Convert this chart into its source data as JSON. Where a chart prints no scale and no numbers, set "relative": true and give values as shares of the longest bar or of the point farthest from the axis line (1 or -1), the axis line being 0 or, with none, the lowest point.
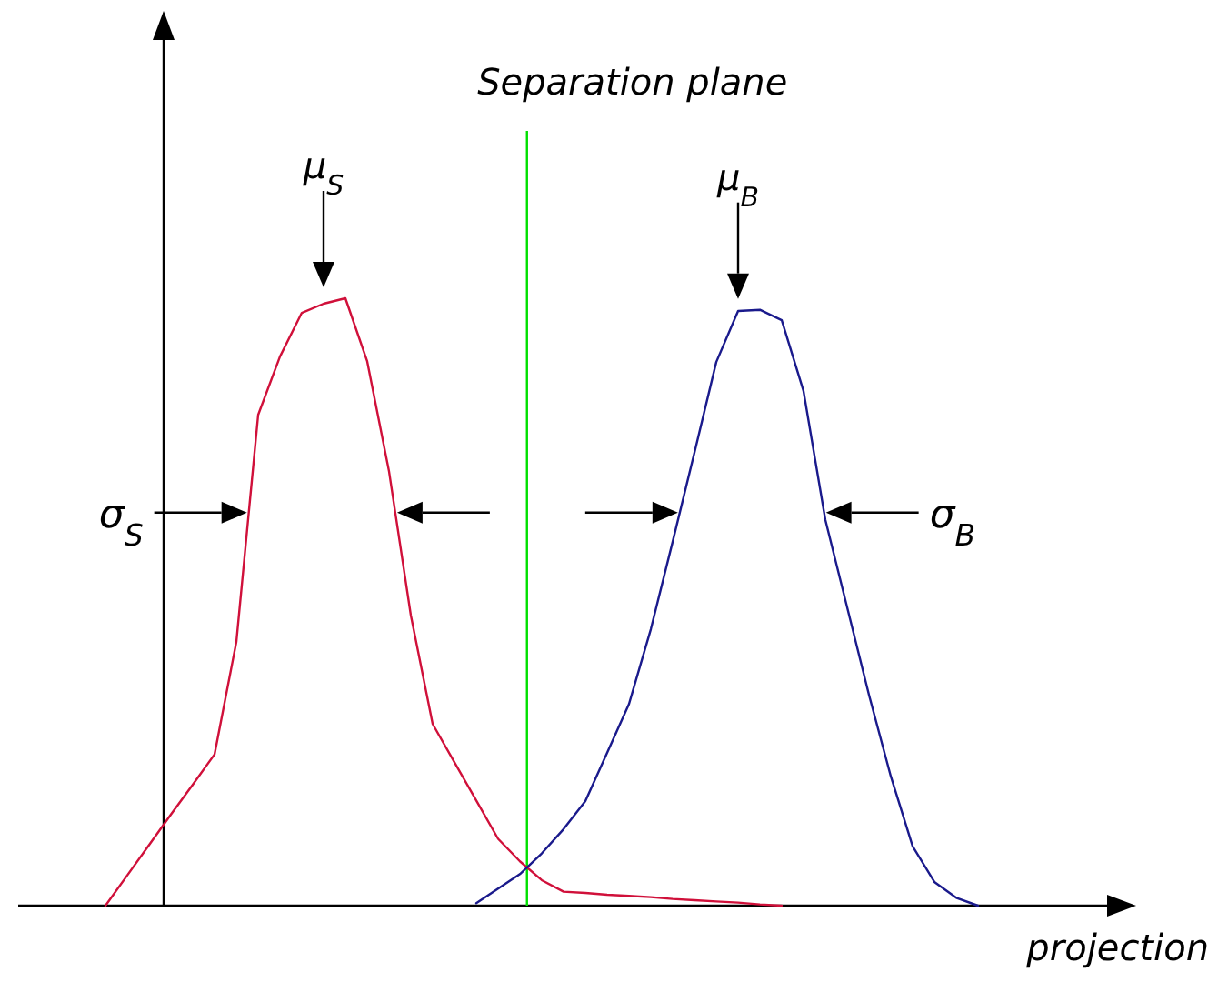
{
  "chart_data": {
    "type": "line",
    "relative": true,
    "xlabel": "projection",
    "categories": [
      null,
      null,
      null,
      null,
      null,
      null,
      null,
      null,
      null,
      null,
      null,
      null,
      null,
      null,
      null,
      null,
      null,
      null,
      null,
      null,
      null,
      null,
      null,
      null,
      null,
      null,
      null,
      null,
      null,
      null,
      null,
      null,
      null,
      null,
      null,
      null,
      null,
      null,
      null,
      null,
      null
    ],
    "series": [
      {
        "color": "#d0103a",
        "values": [
          0,
          0.05,
          0.1,
          0.15,
          0.199,
          0.249,
          0.434,
          0.808,
          0.904,
          0.976,
          0.991,
          1.0,
          0.896,
          0.715,
          0.478,
          0.299,
          0.236,
          0.173,
          0.11,
          0.073,
          0.042,
          0.023,
          0.021,
          0.018,
          0.016,
          0.014,
          0.011,
          0.009,
          0.007,
          0.005,
          0.002,
          0,
          null,
          null,
          null,
          null,
          null,
          null,
          null,
          null,
          null
        ]
      },
      {
        "color": "#1a1a8c",
        "values": [
          null,
          null,
          null,
          null,
          null,
          null,
          null,
          null,
          null,
          null,
          null,
          null,
          null,
          null,
          null,
          null,
          null,
          0.004,
          0.028,
          0.052,
          0.086,
          0.126,
          0.172,
          0.252,
          0.332,
          0.455,
          0.599,
          0.746,
          0.895,
          0.979,
          0.981,
          0.964,
          0.847,
          0.635,
          0.491,
          0.347,
          0.213,
          0.098,
          0.039,
          0.013,
          0
        ]
      }
    ],
    "annotations": [
      "Separation plane",
      "μ$_{S}$",
      "μ$_{B}$",
      "σ$_{S}$",
      "σ$_{B}$"
    ]
  }
}
